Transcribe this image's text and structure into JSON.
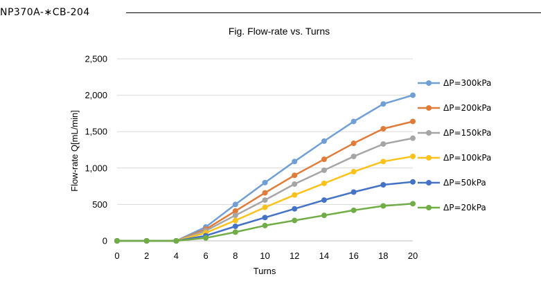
{
  "header": {
    "doc_code": "NP370A-∗CB-204"
  },
  "chart_data": {
    "type": "line",
    "title": "Fig. Flow-rate vs. Turns",
    "xlabel": "Turns",
    "ylabel": "Flow-rate Q[mL/min]",
    "x": [
      0,
      2,
      4,
      6,
      8,
      10,
      12,
      14,
      16,
      18,
      20
    ],
    "x_ticks": [
      "0",
      "2",
      "4",
      "6",
      "8",
      "10",
      "12",
      "14",
      "16",
      "18",
      "20"
    ],
    "y_ticks": [
      "0",
      "500",
      "1,000",
      "1,500",
      "2,000",
      "2,500"
    ],
    "xlim": [
      0,
      20
    ],
    "ylim": [
      0,
      2500
    ],
    "grid": "horizontal",
    "legend_position": "right",
    "series": [
      {
        "name": "ΔP=300kPa",
        "color": "#6f9fd4",
        "values": [
          0,
          0,
          0,
          190,
          500,
          800,
          1090,
          1370,
          1640,
          1880,
          2000
        ]
      },
      {
        "name": "ΔP=200kPa",
        "color": "#e07b39",
        "values": [
          0,
          0,
          0,
          160,
          410,
          660,
          900,
          1120,
          1340,
          1540,
          1640
        ]
      },
      {
        "name": "ΔP=150kPa",
        "color": "#a5a5a5",
        "values": [
          0,
          0,
          0,
          140,
          350,
          560,
          780,
          970,
          1160,
          1330,
          1410
        ]
      },
      {
        "name": "ΔP=100kPa",
        "color": "#fcc21c",
        "values": [
          0,
          0,
          0,
          110,
          280,
          460,
          630,
          790,
          950,
          1090,
          1160
        ]
      },
      {
        "name": "ΔP=50kPa",
        "color": "#4472c4",
        "values": [
          0,
          0,
          0,
          70,
          200,
          320,
          440,
          560,
          670,
          770,
          810
        ]
      },
      {
        "name": "ΔP=20kPa",
        "color": "#70ad47",
        "values": [
          0,
          0,
          0,
          40,
          120,
          210,
          280,
          350,
          420,
          480,
          510
        ]
      }
    ]
  }
}
